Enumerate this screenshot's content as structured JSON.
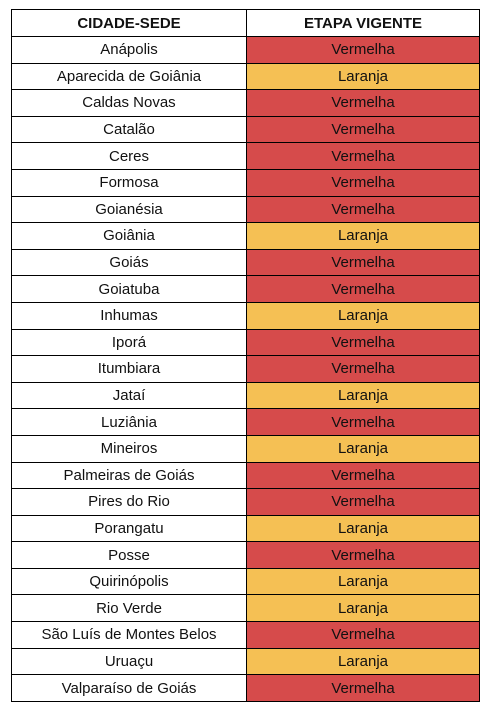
{
  "table": {
    "headers": {
      "city": "CIDADE-SEDE",
      "stage": "ETAPA VIGENTE"
    },
    "colors": {
      "Vermelha": "#d64b4b",
      "Laranja": "#f5c054"
    },
    "rows": [
      {
        "city": "Anápolis",
        "stage": "Vermelha"
      },
      {
        "city": "Aparecida de Goiânia",
        "stage": "Laranja"
      },
      {
        "city": "Caldas Novas",
        "stage": "Vermelha"
      },
      {
        "city": "Catalão",
        "stage": "Vermelha"
      },
      {
        "city": "Ceres",
        "stage": "Vermelha"
      },
      {
        "city": "Formosa",
        "stage": "Vermelha"
      },
      {
        "city": "Goianésia",
        "stage": "Vermelha"
      },
      {
        "city": "Goiânia",
        "stage": "Laranja"
      },
      {
        "city": "Goiás",
        "stage": "Vermelha"
      },
      {
        "city": "Goiatuba",
        "stage": "Vermelha"
      },
      {
        "city": "Inhumas",
        "stage": "Laranja"
      },
      {
        "city": "Iporá",
        "stage": "Vermelha"
      },
      {
        "city": "Itumbiara",
        "stage": "Vermelha"
      },
      {
        "city": "Jataí",
        "stage": "Laranja"
      },
      {
        "city": "Luziânia",
        "stage": "Vermelha"
      },
      {
        "city": "Mineiros",
        "stage": "Laranja"
      },
      {
        "city": "Palmeiras de Goiás",
        "stage": "Vermelha"
      },
      {
        "city": "Pires do Rio",
        "stage": "Vermelha"
      },
      {
        "city": "Porangatu",
        "stage": "Laranja"
      },
      {
        "city": "Posse",
        "stage": "Vermelha"
      },
      {
        "city": "Quirinópolis",
        "stage": "Laranja"
      },
      {
        "city": "Rio Verde",
        "stage": "Laranja"
      },
      {
        "city": "São Luís de Montes Belos",
        "stage": "Vermelha"
      },
      {
        "city": "Uruaçu",
        "stage": "Laranja"
      },
      {
        "city": "Valparaíso de Goiás",
        "stage": "Vermelha"
      }
    ]
  }
}
